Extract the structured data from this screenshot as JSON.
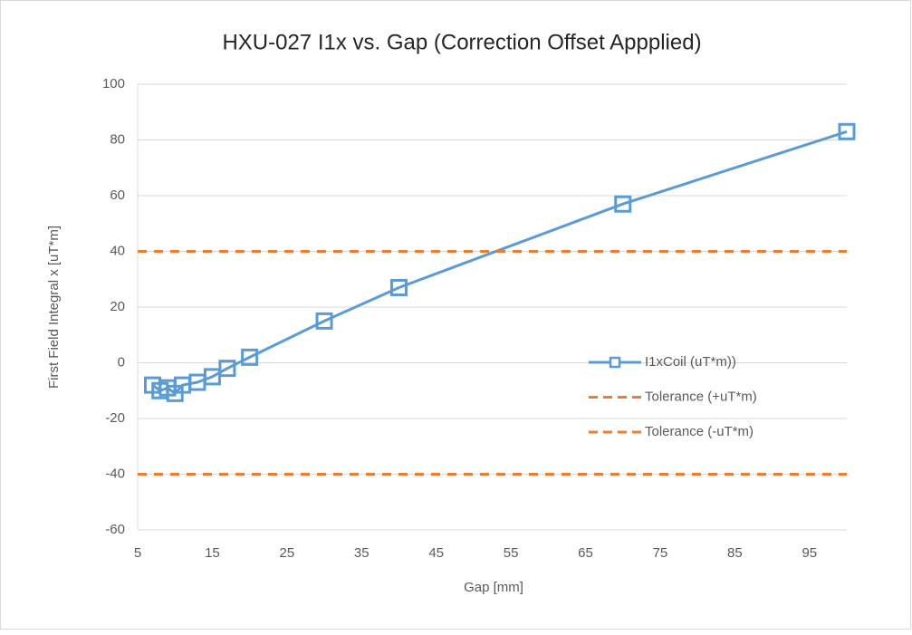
{
  "chart_data": {
    "type": "scatter",
    "title": "HXU-027 I1x vs. Gap (Correction Offset Appplied)",
    "x_label": "Gap [mm]",
    "y_label": "First Field Integral x [uT*m]",
    "xlim": [
      5,
      100
    ],
    "xticks": [
      5,
      15,
      25,
      35,
      45,
      55,
      65,
      75,
      85,
      95
    ],
    "ylim": [
      -60,
      100
    ],
    "yticks": [
      -60,
      -40,
      -20,
      0,
      20,
      40,
      60,
      80,
      100
    ],
    "grid": true,
    "legend": "right",
    "series": [
      {
        "name": "I1xCoil  (uT*m))",
        "color": "#5b9bd5",
        "line_style": "solid",
        "marker": "square",
        "x": [
          7,
          8,
          9,
          10,
          11,
          13,
          15,
          17,
          20,
          30,
          40,
          70,
          100
        ],
        "values": [
          -8,
          -10,
          -9,
          -11,
          -8,
          -7,
          -5,
          -2,
          2,
          15,
          27,
          57,
          83
        ]
      },
      {
        "name": "Tolerance (+uT*m)",
        "color": "#ed7d31",
        "line_style": "dashed",
        "marker": "none",
        "x": [
          5,
          100
        ],
        "values": [
          40,
          40
        ]
      },
      {
        "name": "Tolerance (-uT*m)",
        "color": "#ed7d31",
        "line_style": "dashed",
        "marker": "none",
        "x": [
          5,
          100
        ],
        "values": [
          -40,
          -40
        ]
      }
    ]
  }
}
